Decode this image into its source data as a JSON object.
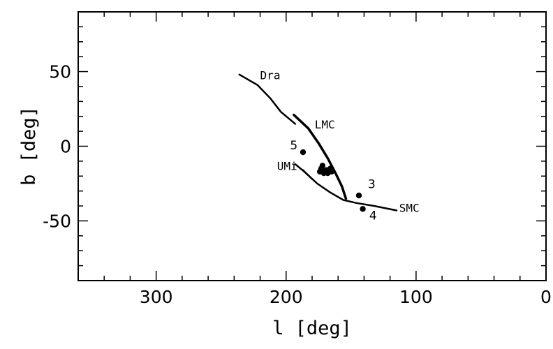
{
  "chart_data": {
    "type": "line",
    "title": "",
    "xlabel": "l [deg]",
    "ylabel": "b [deg]",
    "xlim": [
      360,
      0
    ],
    "ylim": [
      -90,
      90
    ],
    "x_reversed": true,
    "xticks": [
      300,
      200,
      100,
      0
    ],
    "yticks": [
      50,
      0,
      -50
    ],
    "minor_x_step": 20,
    "minor_y_step": 10,
    "grid": false,
    "series": [
      {
        "name": "Dra",
        "values": [
          [
            236,
            48
          ],
          [
            222,
            41
          ],
          [
            212,
            32
          ],
          [
            204,
            23
          ],
          [
            193,
            15
          ]
        ],
        "label": "Dra",
        "label_at": [
          220,
          45
        ]
      },
      {
        "name": "LMC",
        "values": [
          [
            194,
            21
          ],
          [
            183,
            12
          ],
          [
            175,
            2
          ],
          [
            168,
            -8
          ],
          [
            162,
            -18
          ],
          [
            157,
            -27
          ],
          [
            154,
            -35
          ]
        ],
        "label": "LMC",
        "label_at": [
          178,
          12
        ]
      },
      {
        "name": "UMi",
        "values": [
          [
            193,
            -12
          ],
          [
            186,
            -17
          ],
          [
            176,
            -25
          ],
          [
            166,
            -31
          ],
          [
            156,
            -36
          ],
          [
            146,
            -38
          ],
          [
            132,
            -40
          ],
          [
            115,
            -43
          ]
        ],
        "label": "UMi",
        "label_at": [
          207,
          -16
        ]
      },
      {
        "name": "SMC",
        "values": [
          [
            187,
            -16
          ],
          [
            180,
            -22
          ]
        ],
        "label": "SMC",
        "label_at": [
          113,
          -44
        ]
      }
    ],
    "points": [
      {
        "label": "5",
        "x": 187,
        "y": -4,
        "label_at": [
          197,
          -2
        ]
      },
      {
        "label": "",
        "x": 172,
        "y": -13
      },
      {
        "label": "",
        "x": 169,
        "y": -16
      },
      {
        "label": "",
        "x": 166,
        "y": -15
      },
      {
        "label": "",
        "x": 174,
        "y": -17
      },
      {
        "label": "",
        "x": 168,
        "y": -18
      },
      {
        "label": "",
        "x": 171,
        "y": -18
      },
      {
        "label": "",
        "x": 165,
        "y": -17
      },
      {
        "label": "",
        "x": 173,
        "y": -15
      },
      {
        "label": "3",
        "x": 144,
        "y": -33,
        "label_at": [
          137,
          -28
        ]
      },
      {
        "label": "4",
        "x": 141,
        "y": -42,
        "label_at": [
          136,
          -49
        ]
      }
    ]
  }
}
